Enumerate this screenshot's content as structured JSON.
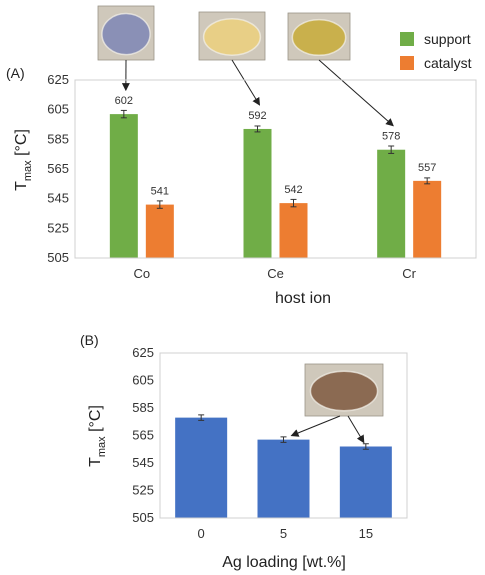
{
  "chart_data": [
    {
      "type": "bar",
      "panel_label": "(A)",
      "categories": [
        "Co",
        "Ce",
        "Cr"
      ],
      "series": [
        {
          "name": "support",
          "values": [
            602,
            592,
            578
          ],
          "errors": [
            2.5,
            2,
            2.5
          ],
          "color": "#70ad47"
        },
        {
          "name": "catalyst",
          "values": [
            541,
            542,
            557
          ],
          "errors": [
            2.5,
            2.5,
            2
          ],
          "color": "#ed7d31"
        }
      ],
      "data_labels": [
        [
          "602",
          "592",
          "578"
        ],
        [
          "541",
          "542",
          "557"
        ]
      ],
      "xlabel": "host ion",
      "ylabel_main": "T",
      "ylabel_sub": "max",
      "ylabel_unit": " [°C]",
      "ylim": [
        505,
        625
      ],
      "yticks": [
        505,
        525,
        545,
        565,
        585,
        605,
        625
      ],
      "grid": false,
      "legend": "top-right",
      "photos": [
        {
          "color": "#8a90b6",
          "target": "Co-support-bar"
        },
        {
          "color": "#e8cf86",
          "target": "Ce-support-bar"
        },
        {
          "color": "#c9b04c",
          "target": "Cr-support-bar"
        }
      ]
    },
    {
      "type": "bar",
      "panel_label": "(B)",
      "categories": [
        "0",
        "5",
        "15"
      ],
      "series": [
        {
          "values": [
            578,
            562,
            557
          ],
          "errors": [
            2,
            2,
            2
          ],
          "color": "#4472c4"
        }
      ],
      "xlabel": "Ag loading [wt.%]",
      "ylabel_main": "T",
      "ylabel_sub": "max",
      "ylabel_unit": " [°C]",
      "ylim": [
        505,
        625
      ],
      "yticks": [
        505,
        525,
        545,
        565,
        585,
        605,
        625
      ],
      "grid": false,
      "photos": [
        {
          "color": "#8b6a52",
          "target": "5-and-15-bars"
        }
      ]
    }
  ]
}
